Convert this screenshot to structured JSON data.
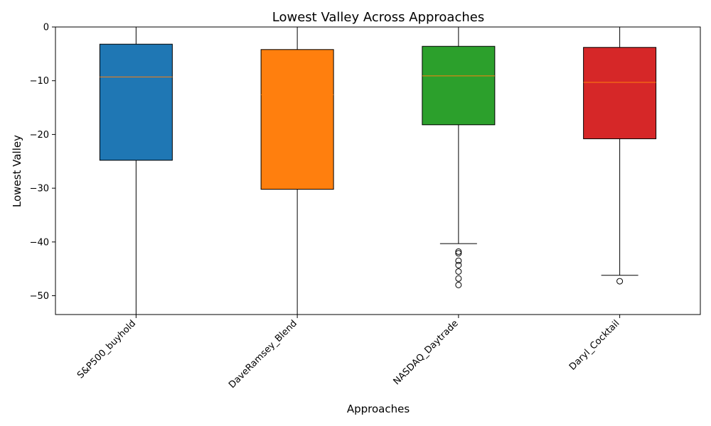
{
  "chart_data": {
    "type": "box",
    "title": "Lowest Valley Across Approaches",
    "xlabel": "Approaches",
    "ylabel": "Lowest Valley",
    "ylim": [
      -53.5,
      0
    ],
    "yticks": [
      0,
      -10,
      -20,
      -30,
      -40,
      -50
    ],
    "ytick_labels": [
      "0",
      "−10",
      "−20",
      "−30",
      "−40",
      "−50"
    ],
    "grid": false,
    "boxes": [
      {
        "category": "S&P500_buyhold",
        "color": "#1f77b4",
        "whisker_high": 0,
        "q3": -3.2,
        "median": -9.3,
        "q1": -24.8,
        "whisker_low": -53.5,
        "outliers": []
      },
      {
        "category": "DaveRamsey_Blend",
        "color": "#ff7f0e",
        "whisker_high": 0,
        "q3": -4.2,
        "median": -12.6,
        "q1": -30.2,
        "whisker_low": -53.5,
        "outliers": []
      },
      {
        "category": "NASDAQ_Daytrade",
        "color": "#2ca02c",
        "whisker_high": 0,
        "q3": -3.6,
        "median": -9.1,
        "q1": -18.2,
        "whisker_low": -40.3,
        "outliers": [
          -41.8,
          -42.1,
          -43.5,
          -44.3,
          -45.5,
          -46.8,
          -48.0
        ]
      },
      {
        "category": "Daryl_Cocktail",
        "color": "#d62728",
        "whisker_high": 0,
        "q3": -3.8,
        "median": -10.3,
        "q1": -20.8,
        "whisker_low": -46.2,
        "outliers": [
          -47.3
        ]
      }
    ]
  }
}
